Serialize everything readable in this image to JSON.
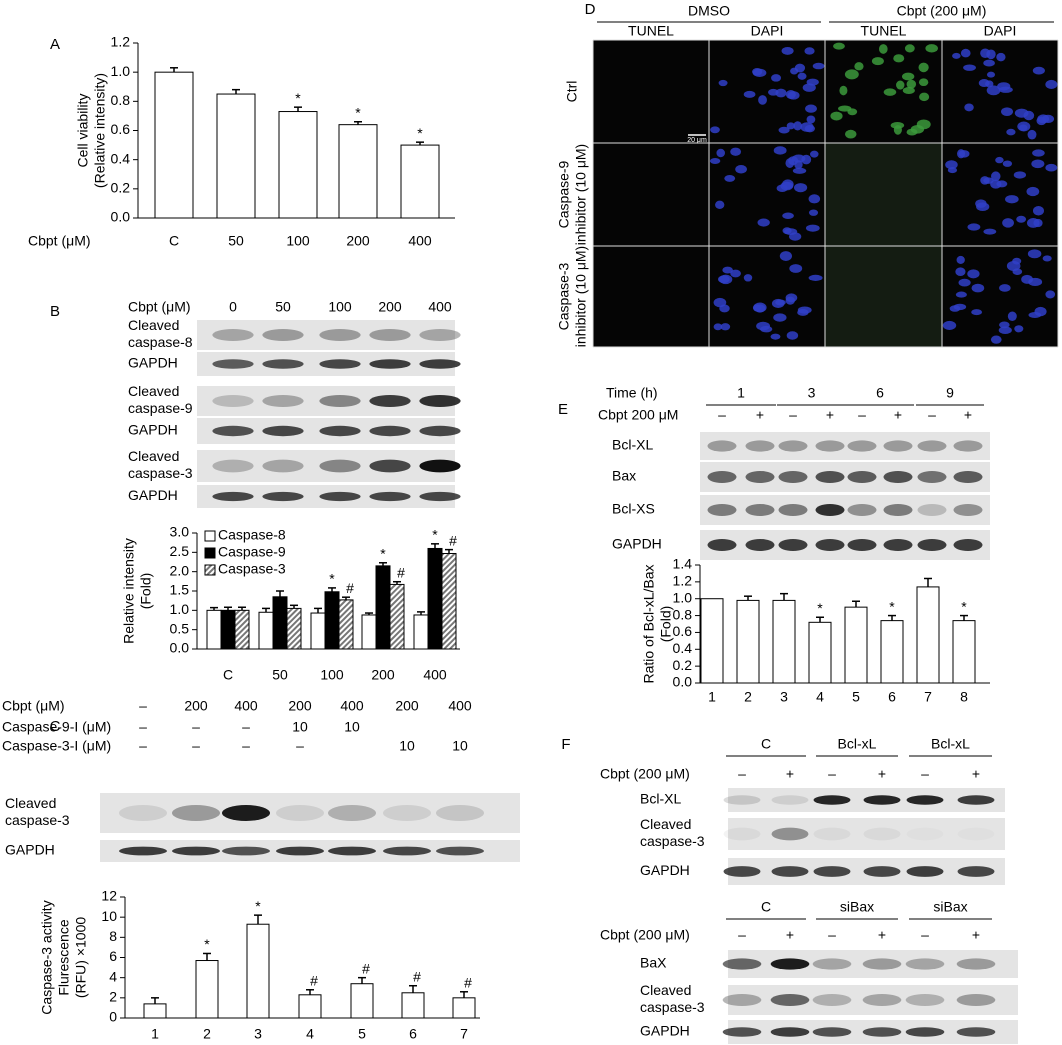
{
  "chart_data": [
    {
      "panel": "A",
      "type": "bar",
      "x_label": "Cbpt (μM)",
      "y_label": [
        "Cell viability",
        "(Relative intensity)"
      ],
      "categories": [
        "C",
        "50",
        "100",
        "200",
        "400"
      ],
      "values": [
        1.0,
        0.85,
        0.73,
        0.64,
        0.5
      ],
      "errors": [
        0.03,
        0.03,
        0.03,
        0.02,
        0.02
      ],
      "markers": [
        null,
        null,
        "*",
        "*",
        "*"
      ],
      "color": "#ffffff",
      "ylim": [
        0,
        1.2
      ],
      "yticks": [
        {
          "value": 0,
          "label": "0.0"
        },
        0.2,
        0.4,
        0.6,
        0.8,
        {
          "value": 1,
          "label": "1.0"
        },
        1.2
      ]
    },
    {
      "type": "bar",
      "y_label": [
        "Relative intensity",
        "(Fold)"
      ],
      "categories": [
        "C",
        "50",
        "100",
        "200",
        "400"
      ],
      "legend": "upper left",
      "series": [
        {
          "name": "Caspase-8",
          "color": "#ffffff",
          "values": [
            1.0,
            0.95,
            0.93,
            0.88,
            0.88
          ],
          "errors": [
            0.07,
            0.1,
            0.12,
            0.05,
            0.08
          ],
          "markers": [
            null,
            null,
            null,
            null,
            null
          ]
        },
        {
          "name": "Caspase-9",
          "color": "#000000",
          "values": [
            1.0,
            1.35,
            1.48,
            2.15,
            2.6
          ],
          "errors": [
            0.08,
            0.15,
            0.1,
            0.08,
            0.12
          ],
          "markers": [
            null,
            null,
            "*",
            "*",
            "*"
          ]
        },
        {
          "name": "Caspase-3",
          "color": "#888888",
          "fill": "hatch",
          "values": [
            1.0,
            1.05,
            1.27,
            1.67,
            2.47
          ],
          "errors": [
            0.08,
            0.08,
            0.07,
            0.07,
            0.1
          ],
          "markers": [
            null,
            null,
            "#",
            "#",
            "#"
          ]
        }
      ],
      "ylim": [
        0,
        3
      ],
      "yticks": [
        {
          "value": 0,
          "label": "0.0"
        },
        0.5,
        {
          "value": 1,
          "label": "1.0"
        },
        1.5,
        {
          "value": 2,
          "label": "2.0"
        },
        2.5,
        {
          "value": 3,
          "label": "3.0"
        }
      ]
    },
    {
      "type": "bar",
      "y_label": [
        "Caspase-3 activity",
        "Flurescence",
        "(RFU) ×1000"
      ],
      "categories": [
        "1",
        "2",
        "3",
        "4",
        "5",
        "6",
        "7"
      ],
      "values": [
        1.4,
        5.7,
        9.3,
        2.3,
        3.4,
        2.5,
        2.0
      ],
      "errors": [
        0.6,
        0.7,
        0.9,
        0.5,
        0.6,
        0.7,
        0.6
      ],
      "markers": [
        null,
        "*",
        "*",
        "#",
        "#",
        "#",
        "#"
      ],
      "color": "#ffffff",
      "ylim": [
        0,
        12
      ],
      "yticks": [
        0,
        2,
        4,
        6,
        8,
        10,
        12
      ]
    },
    {
      "type": "bar",
      "y_label": [
        "Ratio of Bcl-xL/Bax",
        "(Fold)"
      ],
      "categories": [
        "1",
        "2",
        "3",
        "4",
        "5",
        "6",
        "7",
        "8"
      ],
      "values": [
        1.0,
        0.98,
        0.98,
        0.72,
        0.9,
        0.74,
        1.14,
        0.74
      ],
      "errors": [
        null,
        0.05,
        0.08,
        0.06,
        0.07,
        0.06,
        0.1,
        0.06
      ],
      "markers": [
        null,
        null,
        null,
        "*",
        null,
        "*",
        null,
        "*"
      ],
      "color": "#ffffff",
      "ylim": [
        0,
        1.4
      ],
      "yticks": [
        {
          "value": 0,
          "label": "0.0"
        },
        0.2,
        0.4,
        0.6,
        0.8,
        {
          "value": 1,
          "label": "1.0"
        },
        1.2,
        1.4
      ]
    }
  ],
  "blots": [
    {
      "panel": "B",
      "conditions": [
        {
          "label": "Cbpt (μM)",
          "lanes": [
            "0",
            "50",
            "100",
            "200",
            "400"
          ]
        }
      ],
      "rows": [
        [
          "Cleaved",
          "caspase-8"
        ],
        [
          "GAPDH"
        ],
        [
          "Cleaved",
          "caspase-9"
        ],
        [
          "GAPDH"
        ],
        [
          "Cleaved",
          "caspase-3"
        ],
        [
          "GAPDH"
        ]
      ]
    },
    {
      "panel": "C",
      "conditions": [
        {
          "label": "Cbpt (μM)",
          "lanes": [
            "–",
            "200",
            "400",
            "200",
            "400",
            "200",
            "400"
          ]
        },
        {
          "label": "Caspase-9-I (μM)",
          "lanes": [
            "–",
            "–",
            "–",
            "10",
            "10",
            null,
            null
          ]
        },
        {
          "label": "Caspase-3-I (μM)",
          "lanes": [
            "–",
            "–",
            "–",
            "–",
            null,
            "10",
            "10"
          ]
        }
      ],
      "rows": [
        [
          "Cleaved",
          "caspase-3"
        ],
        [
          "GAPDH"
        ]
      ]
    },
    {
      "panel": "E",
      "groups": {
        "label": "Time (h)",
        "names": [
          "1",
          "3",
          "6",
          "9"
        ]
      },
      "conditions": [
        {
          "label": "Cbpt 200 μM",
          "lanes": [
            "–",
            "+",
            "–",
            "+",
            "–",
            "+",
            "–",
            "+"
          ]
        }
      ],
      "rows": [
        [
          "Bcl-XL"
        ],
        [
          "Bax"
        ],
        [
          "Bcl-XS"
        ],
        [
          "GAPDH"
        ]
      ]
    },
    {
      "panel": "F",
      "groups": {
        "names": [
          "C",
          "Bcl-xL",
          "Bcl-xL"
        ]
      },
      "conditions": [
        {
          "label": "Cbpt (200 μM)",
          "lanes": [
            "–",
            "+",
            "–",
            "+",
            "–",
            "+"
          ]
        }
      ],
      "rows": [
        [
          "Bcl-XL"
        ],
        [
          "Cleaved",
          "caspase-3"
        ],
        [
          "GAPDH"
        ]
      ]
    },
    {
      "groups": {
        "names": [
          "C",
          "siBax",
          "siBax"
        ]
      },
      "conditions": [
        {
          "label": "Cbpt (200 μM)",
          "lanes": [
            "–",
            "+",
            "–",
            "+",
            "–",
            "+"
          ]
        }
      ],
      "rows": [
        [
          "BaX"
        ],
        [
          "Cleaved",
          "caspase-3"
        ],
        [
          "GAPDH"
        ]
      ]
    }
  ],
  "microscopy": {
    "panel": "D",
    "groups": [
      "DMSO",
      "Cbpt (200 μM)"
    ],
    "columns": [
      "TUNEL",
      "DAPI",
      "TUNEL",
      "DAPI"
    ],
    "rows": [
      [
        "Ctrl"
      ],
      [
        "Caspase-9",
        "inhibitor (10 μM)"
      ],
      [
        "Caspase-3",
        "inhibitor (10 μM)"
      ]
    ],
    "scale_bar": "20 μm"
  }
}
